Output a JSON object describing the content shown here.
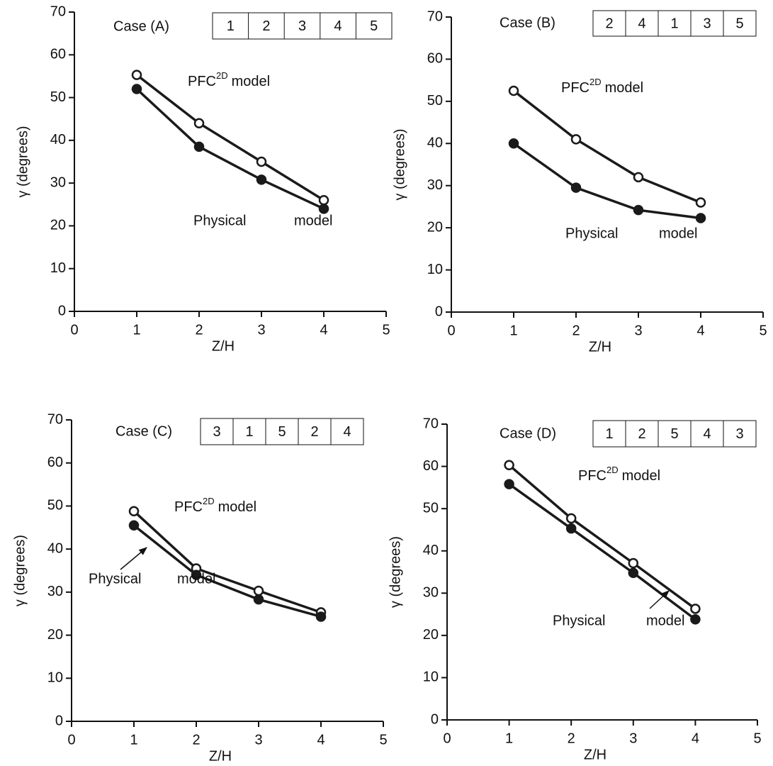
{
  "chart_data": [
    {
      "type": "line",
      "case_label": "Case (A)",
      "sequence": [
        1,
        2,
        3,
        4,
        5
      ],
      "x_label": "Z/H",
      "y_label": "γ (degrees)",
      "x": [
        1,
        2,
        3,
        4
      ],
      "xlim": [
        0,
        5
      ],
      "xticks": [
        0,
        1,
        2,
        3,
        4,
        5
      ],
      "ylim": [
        0,
        70
      ],
      "yticks": [
        0,
        10,
        20,
        30,
        40,
        50,
        60,
        70
      ],
      "series": [
        {
          "color": "#1a1a1a",
          "marker_fill": "#ffffff",
          "values": [
            55.3,
            44,
            35,
            26
          ]
        },
        {
          "color": "#1a1a1a",
          "marker_fill": "#1a1a1a",
          "values": [
            52,
            38.5,
            30.8,
            24
          ]
        }
      ],
      "annotations": {
        "pfc": "PFC",
        "pfc_sup": "2D",
        "pfc_suffix": "model",
        "physical": "Physical",
        "model": "model"
      }
    },
    {
      "type": "line",
      "case_label": "Case (B)",
      "sequence": [
        2,
        4,
        1,
        3,
        5
      ],
      "x_label": "Z/H",
      "y_label": "γ (degrees)",
      "x": [
        1,
        2,
        3,
        4
      ],
      "xlim": [
        0,
        5
      ],
      "xticks": [
        0,
        1,
        2,
        3,
        4,
        5
      ],
      "ylim": [
        0,
        70
      ],
      "yticks": [
        0,
        10,
        20,
        30,
        40,
        50,
        60,
        70
      ],
      "series": [
        {
          "color": "#1a1a1a",
          "marker_fill": "#ffffff",
          "values": [
            52.5,
            41,
            32,
            26
          ]
        },
        {
          "color": "#1a1a1a",
          "marker_fill": "#1a1a1a",
          "values": [
            40,
            29.5,
            24.2,
            22.3
          ]
        }
      ],
      "annotations": {
        "pfc": "PFC",
        "pfc_sup": "2D",
        "pfc_suffix": "model",
        "physical": "Physical",
        "model": "model"
      }
    },
    {
      "type": "line",
      "case_label": "Case (C)",
      "sequence": [
        3,
        1,
        5,
        2,
        4
      ],
      "x_label": "Z/H",
      "y_label": "γ (degrees)",
      "x": [
        1,
        2,
        3,
        4
      ],
      "xlim": [
        0,
        5
      ],
      "xticks": [
        0,
        1,
        2,
        3,
        4,
        5
      ],
      "ylim": [
        0,
        70
      ],
      "yticks": [
        0,
        10,
        20,
        30,
        40,
        50,
        60,
        70
      ],
      "series": [
        {
          "color": "#1a1a1a",
          "marker_fill": "#ffffff",
          "values": [
            48.8,
            35.5,
            30.3,
            25.3
          ]
        },
        {
          "color": "#1a1a1a",
          "marker_fill": "#1a1a1a",
          "values": [
            45.5,
            34,
            28.3,
            24.3
          ]
        }
      ],
      "annotations": {
        "pfc": "PFC",
        "pfc_sup": "2D",
        "pfc_suffix": "model",
        "physical": "Physical",
        "model": "model"
      }
    },
    {
      "type": "line",
      "case_label": "Case (D)",
      "sequence": [
        1,
        2,
        5,
        4,
        3
      ],
      "x_label": "Z/H",
      "y_label": "γ (degrees)",
      "x": [
        1,
        2,
        3,
        4
      ],
      "xlim": [
        0,
        5
      ],
      "xticks": [
        0,
        1,
        2,
        3,
        4,
        5
      ],
      "ylim": [
        0,
        70
      ],
      "yticks": [
        0,
        10,
        20,
        30,
        40,
        50,
        60,
        70
      ],
      "series": [
        {
          "color": "#1a1a1a",
          "marker_fill": "#ffffff",
          "values": [
            60.3,
            47.7,
            37.1,
            26.3
          ]
        },
        {
          "color": "#1a1a1a",
          "marker_fill": "#1a1a1a",
          "values": [
            55.8,
            45.3,
            34.8,
            23.8
          ]
        }
      ],
      "annotations": {
        "pfc": "PFC",
        "pfc_sup": "2D",
        "pfc_suffix": "model",
        "physical": "Physical",
        "model": "model"
      }
    }
  ]
}
